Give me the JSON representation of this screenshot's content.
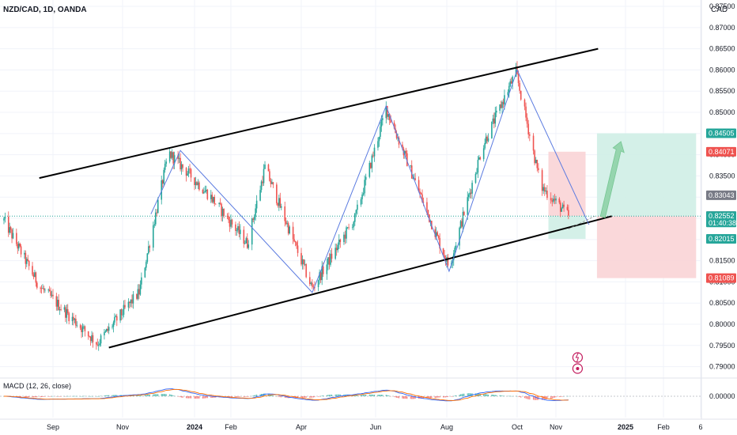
{
  "header": {
    "symbol": "NZD/CAD, 1D, OANDA",
    "currency": "CAD"
  },
  "macd": {
    "label": "MACD (12, 26, close)",
    "zero_label": "0.00000"
  },
  "colors": {
    "up": "#26a69a",
    "down": "#ef5350",
    "channel": "#000000",
    "zigzag": "#5b7be0",
    "grid": "#f0f3fa",
    "profit_zone": "#cfeee5",
    "loss_zone": "#f9d4d6",
    "macd_line": "#2962ff",
    "signal_line": "#ff6d00"
  },
  "chart_data": {
    "type": "candlestick",
    "price_axis": {
      "ticks": [
        "0.87500",
        "0.87000",
        "0.86500",
        "0.86000",
        "0.85500",
        "0.85000",
        "0.84500",
        "0.84000",
        "0.83500",
        "0.83000",
        "0.82500",
        "0.82000",
        "0.81500",
        "0.81000",
        "0.80500",
        "0.80000",
        "0.79500",
        "0.79000"
      ],
      "ylim": [
        0.7875,
        0.8765
      ]
    },
    "time_axis": {
      "labels": [
        {
          "text": "Sep",
          "bold": false
        },
        {
          "text": "Nov",
          "bold": false
        },
        {
          "text": "2024",
          "bold": true
        },
        {
          "text": "Feb",
          "bold": false
        },
        {
          "text": "Apr",
          "bold": false
        },
        {
          "text": "Jun",
          "bold": false
        },
        {
          "text": "Aug",
          "bold": false
        },
        {
          "text": "Oct",
          "bold": false
        },
        {
          "text": "Nov",
          "bold": false
        },
        {
          "text": "2025",
          "bold": true
        },
        {
          "text": "Feb",
          "bold": false
        },
        {
          "text": "6",
          "bold": false
        }
      ]
    },
    "price_tags": [
      {
        "value": "0.84505",
        "price": 0.84505,
        "color": "#26a69a"
      },
      {
        "value": "0.84071",
        "price": 0.84071,
        "color": "#ef5350"
      },
      {
        "value": "0.83043",
        "price": 0.83043,
        "color": "#787b86"
      },
      {
        "value": "0.82553",
        "price": 0.82553,
        "color": "#787b86"
      },
      {
        "value": "0.82552",
        "price": 0.82552,
        "color": "#26a69a",
        "sub": "01:40:38"
      },
      {
        "value": "0.82015",
        "price": 0.82015,
        "color": "#26a69a"
      },
      {
        "value": "0.81089",
        "price": 0.81089,
        "color": "#ef5350"
      }
    ],
    "pivots": [
      {
        "date": "2023-07-20",
        "price": 0.8245
      },
      {
        "date": "2023-08-20",
        "price": 0.809
      },
      {
        "date": "2023-10-10",
        "price": 0.7955
      },
      {
        "date": "2023-11-15",
        "price": 0.8075
      },
      {
        "date": "2023-12-10",
        "price": 0.8405
      },
      {
        "date": "2024-01-15",
        "price": 0.83
      },
      {
        "date": "2024-02-15",
        "price": 0.819
      },
      {
        "date": "2024-03-01",
        "price": 0.837
      },
      {
        "date": "2024-04-10",
        "price": 0.8085
      },
      {
        "date": "2024-05-15",
        "price": 0.825
      },
      {
        "date": "2024-06-10",
        "price": 0.851
      },
      {
        "date": "2024-07-10",
        "price": 0.83
      },
      {
        "date": "2024-08-03",
        "price": 0.8135
      },
      {
        "date": "2024-09-01",
        "price": 0.842
      },
      {
        "date": "2024-09-30",
        "price": 0.8595
      },
      {
        "date": "2024-10-20",
        "price": 0.8325
      },
      {
        "date": "2024-11-12",
        "price": 0.8255
      }
    ],
    "channel_upper": [
      {
        "date": "2023-08-20",
        "price": 0.8345
      },
      {
        "date": "2024-12-08",
        "price": 0.865
      }
    ],
    "channel_lower": [
      {
        "date": "2023-10-20",
        "price": 0.7945
      },
      {
        "date": "2024-12-20",
        "price": 0.8255
      }
    ],
    "zigzag": [
      {
        "date": "2023-11-25",
        "price": 0.826
      },
      {
        "date": "2023-12-20",
        "price": 0.841
      },
      {
        "date": "2024-04-10",
        "price": 0.8075
      },
      {
        "date": "2024-06-10",
        "price": 0.8515
      },
      {
        "date": "2024-08-03",
        "price": 0.8125
      },
      {
        "date": "2024-10-01",
        "price": 0.86
      },
      {
        "date": "2024-11-30",
        "price": 0.8235
      }
    ],
    "position": {
      "entry_price": 0.82552,
      "target_price": 0.84505,
      "stop_price": 0.81089
    },
    "prior_position": {
      "entry_price": 0.82552,
      "target_price": 0.82015,
      "stop_price": 0.84071
    }
  }
}
